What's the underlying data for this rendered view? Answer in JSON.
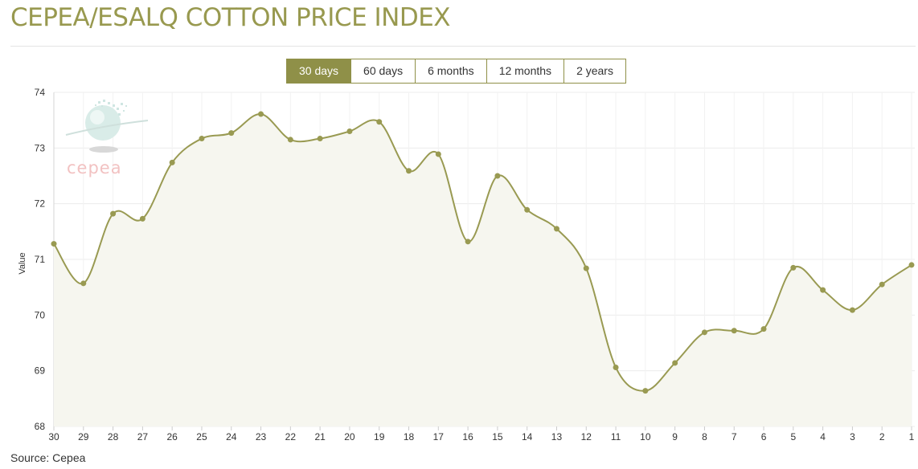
{
  "page": {
    "title": "CEPEA/ESALQ COTTON PRICE INDEX",
    "source_note": "Source: Cepea"
  },
  "range_selector": {
    "options": [
      "30 days",
      "60 days",
      "6 months",
      "12 months",
      "2 years"
    ],
    "selected": "30 days"
  },
  "logo": {
    "text": "cepea"
  },
  "colors": {
    "accent": "#8f9048",
    "title": "#98994f",
    "line": "#999a52",
    "area_fill": "#f6f6ef",
    "grid": "#ececec",
    "logo_text": "#f2c2c2"
  },
  "chart_data": {
    "type": "area",
    "title": "CEPEA/ESALQ COTTON PRICE INDEX",
    "xlabel": "",
    "ylabel": "Value",
    "ylim": [
      68,
      74
    ],
    "yticks": [
      68,
      69,
      70,
      71,
      72,
      73,
      74
    ],
    "grid": true,
    "categories": [
      "30",
      "29",
      "28",
      "27",
      "26",
      "25",
      "24",
      "23",
      "22",
      "21",
      "20",
      "19",
      "18",
      "17",
      "16",
      "15",
      "14",
      "13",
      "12",
      "11",
      "10",
      "9",
      "8",
      "7",
      "6",
      "5",
      "4",
      "3",
      "2",
      "1"
    ],
    "series": [
      {
        "name": "Value",
        "values": [
          71.28,
          70.57,
          71.82,
          71.73,
          72.74,
          73.17,
          73.27,
          73.61,
          73.15,
          73.17,
          73.3,
          73.47,
          72.59,
          72.89,
          71.32,
          72.5,
          71.89,
          71.55,
          70.84,
          69.06,
          68.64,
          69.14,
          69.69,
          69.72,
          69.75,
          70.85,
          70.45,
          70.09,
          70.55,
          70.9
        ]
      }
    ]
  }
}
